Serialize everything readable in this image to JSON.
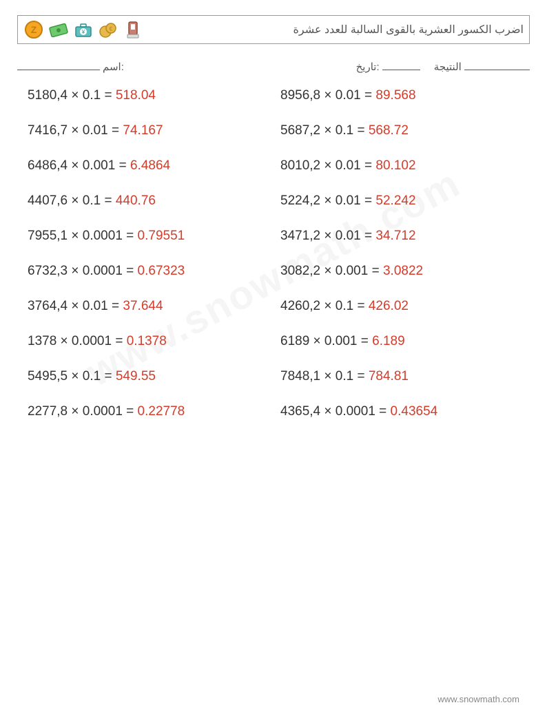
{
  "header": {
    "title": "اضرب الكسور العشرية بالقوى السالبة للعدد عشرة",
    "icons": [
      {
        "name": "coin-z-icon",
        "fill": "#f5a623",
        "stroke": "#c77d0a",
        "glyph": "Z"
      },
      {
        "name": "cash-icon",
        "fill": "#6fc96f",
        "stroke": "#3a9a3a",
        "glyph": "$"
      },
      {
        "name": "briefcase-yen-icon",
        "fill": "#5fbfbf",
        "stroke": "#2e8e8e",
        "glyph": "¥"
      },
      {
        "name": "euro-coins-icon",
        "fill": "#e8b84a",
        "stroke": "#b88a1a",
        "glyph": "€"
      },
      {
        "name": "card-reader-icon",
        "fill": "#c97f6f",
        "stroke": "#8e4a3a",
        "glyph": "▮"
      }
    ]
  },
  "meta": {
    "name_label": ":اسم",
    "date_label": ":تاريخ",
    "score_label": "النتيجة",
    "blank_widths": {
      "name": 120,
      "date": 55,
      "score": 95
    }
  },
  "colors": {
    "text": "#333333",
    "answer": "#d63b2a",
    "border": "#999999",
    "meta_text": "#555555",
    "footer": "#888888",
    "background": "#ffffff"
  },
  "typography": {
    "problem_fontsize": 19,
    "header_fontsize": 16,
    "meta_fontsize": 15,
    "footer_fontsize": 13
  },
  "layout": {
    "columns": 2,
    "rows": 10,
    "row_gap": 29,
    "col_gap": 20
  },
  "problems": {
    "left": [
      {
        "expr": "5180,4 × 0.1 = ",
        "ans": "518.04"
      },
      {
        "expr": "7416,7 × 0.01 = ",
        "ans": "74.167"
      },
      {
        "expr": "6486,4 × 0.001 = ",
        "ans": "6.4864"
      },
      {
        "expr": "4407,6 × 0.1 = ",
        "ans": "440.76"
      },
      {
        "expr": "7955,1 × 0.0001 = ",
        "ans": "0.79551"
      },
      {
        "expr": "6732,3 × 0.0001 = ",
        "ans": "0.67323"
      },
      {
        "expr": "3764,4 × 0.01 = ",
        "ans": "37.644"
      },
      {
        "expr": "1378 × 0.0001 = ",
        "ans": "0.1378"
      },
      {
        "expr": "5495,5 × 0.1 = ",
        "ans": "549.55"
      },
      {
        "expr": "2277,8 × 0.0001 = ",
        "ans": "0.22778"
      }
    ],
    "right": [
      {
        "expr": "8956,8 × 0.01 = ",
        "ans": "89.568"
      },
      {
        "expr": "5687,2 × 0.1 = ",
        "ans": "568.72"
      },
      {
        "expr": "8010,2 × 0.01 = ",
        "ans": "80.102"
      },
      {
        "expr": "5224,2 × 0.01 = ",
        "ans": "52.242"
      },
      {
        "expr": "3471,2 × 0.01 = ",
        "ans": "34.712"
      },
      {
        "expr": "3082,2 × 0.001 = ",
        "ans": "3.0822"
      },
      {
        "expr": "4260,2 × 0.1 = ",
        "ans": "426.02"
      },
      {
        "expr": "6189 × 0.001 = ",
        "ans": "6.189"
      },
      {
        "expr": "7848,1 × 0.1 = ",
        "ans": "784.81"
      },
      {
        "expr": "4365,4 × 0.0001 = ",
        "ans": "0.43654"
      }
    ]
  },
  "watermark": "www.snowmath.com",
  "footer": "www.snowmath.com"
}
